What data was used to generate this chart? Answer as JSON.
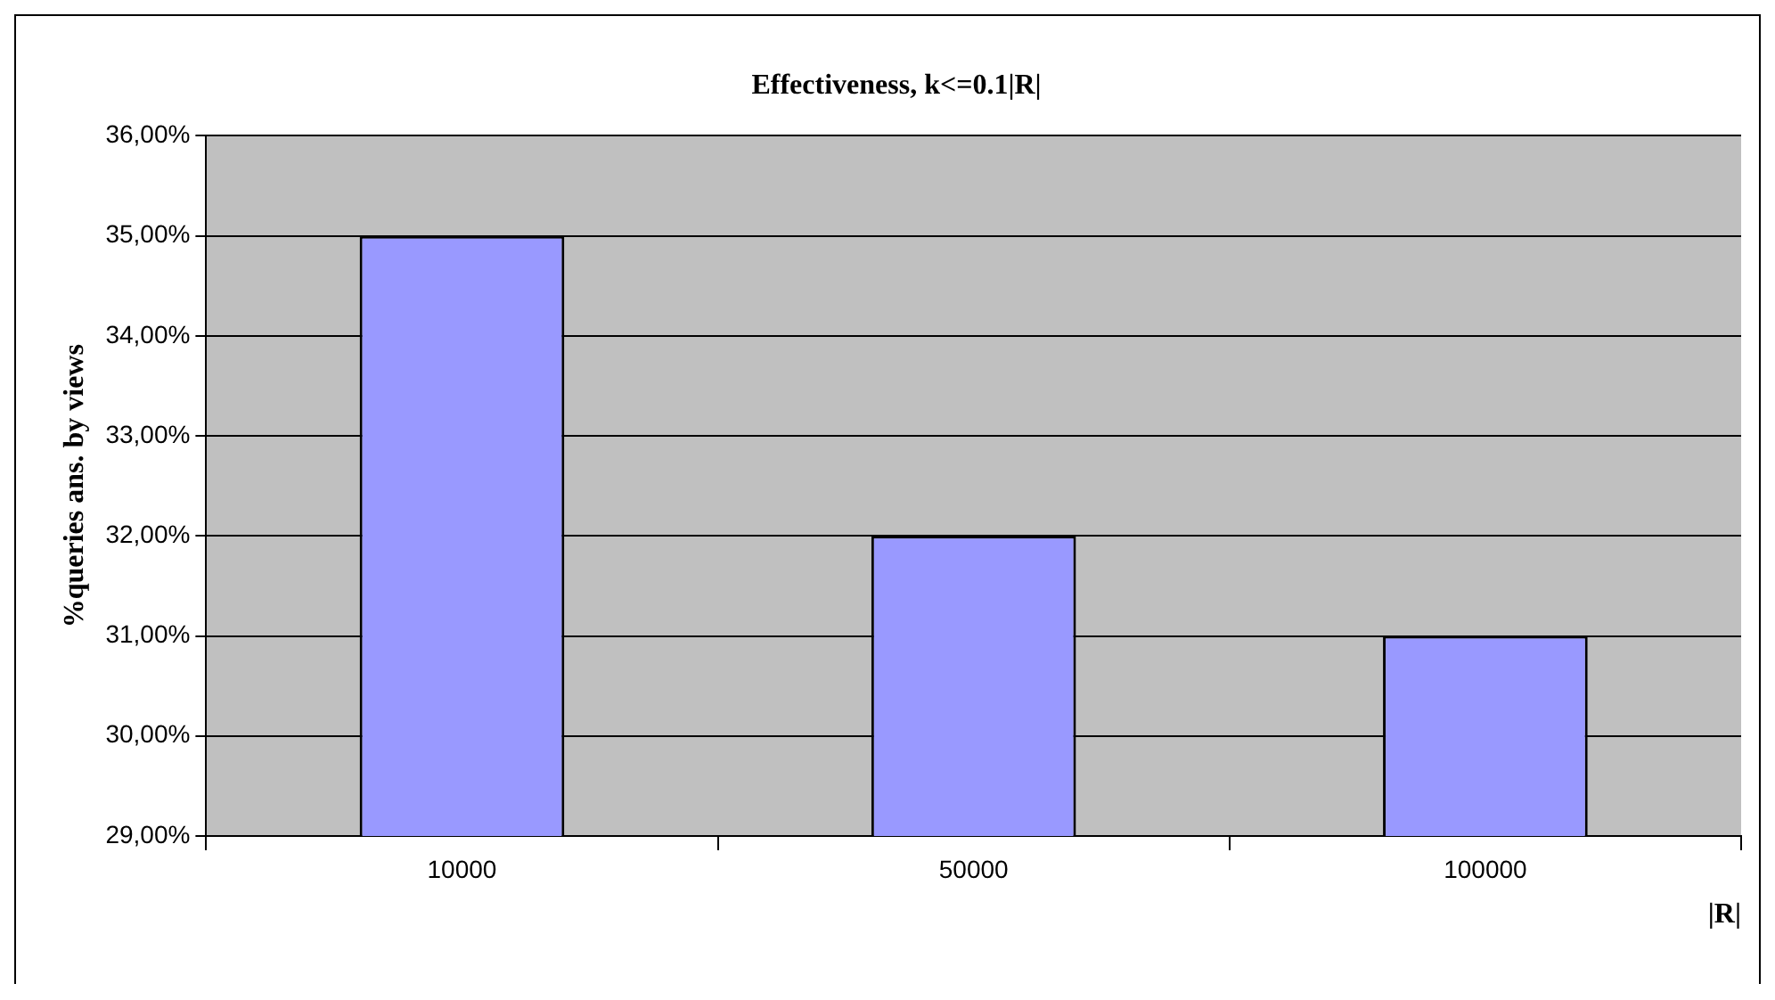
{
  "chart_data": {
    "type": "bar",
    "title": "Effectiveness, k<=0.1|R|",
    "xlabel": "|R|",
    "ylabel": "%queries ans. by views",
    "categories": [
      "10000",
      "50000",
      "100000"
    ],
    "values": [
      35,
      32,
      31
    ],
    "color": "#9999ff",
    "ylim": [
      29,
      36
    ],
    "yticks": [
      {
        "value": 29,
        "label": "29,00%"
      },
      {
        "value": 30,
        "label": "30,00%"
      },
      {
        "value": 31,
        "label": "31,00%"
      },
      {
        "value": 32,
        "label": "32,00%"
      },
      {
        "value": 33,
        "label": "33,00%"
      },
      {
        "value": 34,
        "label": "34,00%"
      },
      {
        "value": 35,
        "label": "35,00%"
      },
      {
        "value": 36,
        "label": "36,00%"
      }
    ],
    "grid": "y",
    "legend": false
  }
}
